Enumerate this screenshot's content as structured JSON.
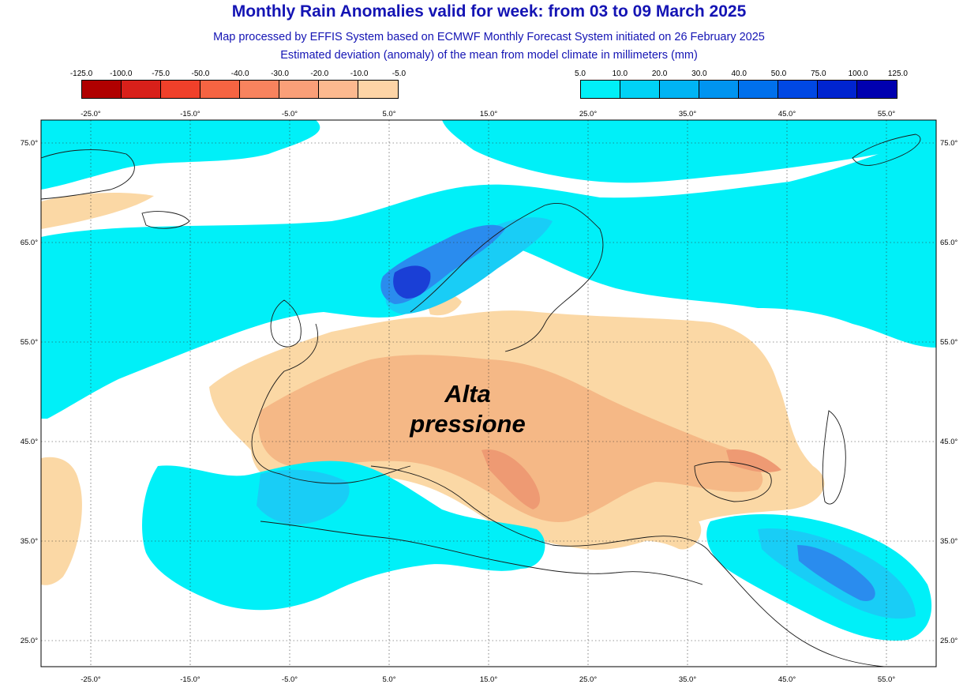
{
  "header": {
    "title": "Monthly Rain Anomalies valid for week: from 03 to 09 March 2025",
    "subtitle_1": "Map processed by EFFIS System based on ECMWF Monthly Forecast System initiated on 26 February 2025",
    "subtitle_2": "Estimated deviation (anomaly) of the mean from model climate in millimeters (mm)"
  },
  "legend_negative": {
    "labels": [
      "-125.0",
      "-100.0",
      "-75.0",
      "-50.0",
      "-40.0",
      "-30.0",
      "-20.0",
      "-10.0",
      "-5.0"
    ],
    "colors": [
      "#b00000",
      "#d8201a",
      "#f0402a",
      "#f66442",
      "#f8835e",
      "#fa9f78",
      "#fcb98f",
      "#fdd4a6"
    ]
  },
  "legend_positive": {
    "labels": [
      "5.0",
      "10.0",
      "20.0",
      "30.0",
      "40.0",
      "50.0",
      "75.0",
      "100.0",
      "125.0"
    ],
    "colors": [
      "#00f0f8",
      "#00d2f6",
      "#00b4f4",
      "#0094f0",
      "#0070ec",
      "#0048e4",
      "#0024d0",
      "#0000b0"
    ]
  },
  "map": {
    "lon_labels": [
      "-25.0°",
      "-15.0°",
      "-5.0°",
      "5.0°",
      "15.0°",
      "25.0°",
      "35.0°",
      "45.0°",
      "55.0°"
    ],
    "lat_labels": [
      "75.0°",
      "65.0°",
      "55.0°",
      "45.0°",
      "35.0°",
      "25.0°"
    ],
    "colors": {
      "dry": "#fbd8a5",
      "dry2": "#f5b886",
      "dry3": "#ee9a73",
      "wet1": "#00f0f8",
      "wet2": "#19cdf6",
      "wet3": "#2a8cee",
      "wet4": "#1a3fd6",
      "land_line": "#1a1a1a"
    }
  },
  "annotation": {
    "line1": "Alta",
    "line2": "pressione"
  }
}
